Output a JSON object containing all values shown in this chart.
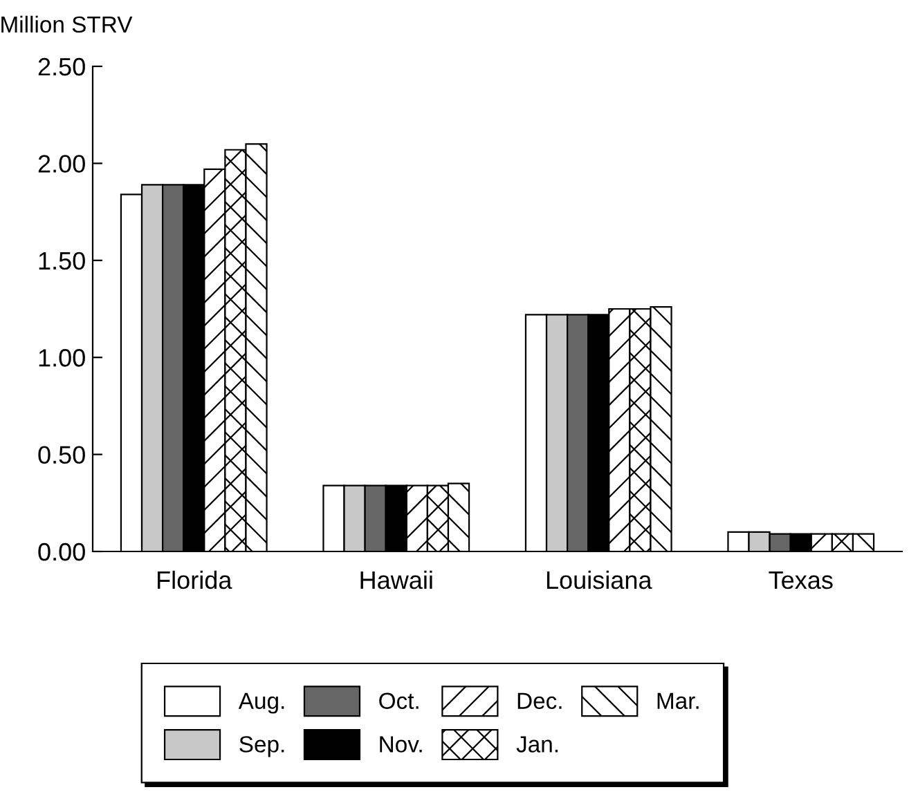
{
  "chart_data": {
    "type": "bar",
    "ylabel": "Million STRV",
    "categories": [
      "Florida",
      "Hawaii",
      "Louisiana",
      "Texas"
    ],
    "series": [
      {
        "name": "Aug.",
        "color": "#ffffff",
        "values": [
          1.84,
          0.34,
          1.22,
          0.1
        ]
      },
      {
        "name": "Sep.",
        "color": "#c8c8c8",
        "values": [
          1.89,
          0.34,
          1.22,
          0.1
        ]
      },
      {
        "name": "Oct.",
        "color": "#666666",
        "values": [
          1.89,
          0.34,
          1.22,
          0.09
        ]
      },
      {
        "name": "Nov.",
        "color": "#000000",
        "values": [
          1.89,
          0.34,
          1.22,
          0.09
        ]
      },
      {
        "name": "Dec.",
        "color": "#ffffff",
        "values": [
          1.97,
          0.34,
          1.25,
          0.09
        ]
      },
      {
        "name": "Jan.",
        "color": "#ffffff",
        "values": [
          2.07,
          0.34,
          1.25,
          0.09
        ]
      },
      {
        "name": "Mar.",
        "color": "#ffffff",
        "values": [
          2.1,
          0.35,
          1.26,
          0.09
        ]
      }
    ],
    "ylim": [
      0,
      2.5
    ],
    "yticks": [
      {
        "value": 0,
        "label": "0.00"
      },
      {
        "value": 0.5,
        "label": "0.50"
      },
      {
        "value": 1,
        "label": "1.00"
      },
      {
        "value": 1.5,
        "label": "1.50"
      },
      {
        "value": 2,
        "label": "2.00"
      },
      {
        "value": 2.5,
        "label": "2.50"
      }
    ],
    "grid": false,
    "legend": "bottom"
  }
}
